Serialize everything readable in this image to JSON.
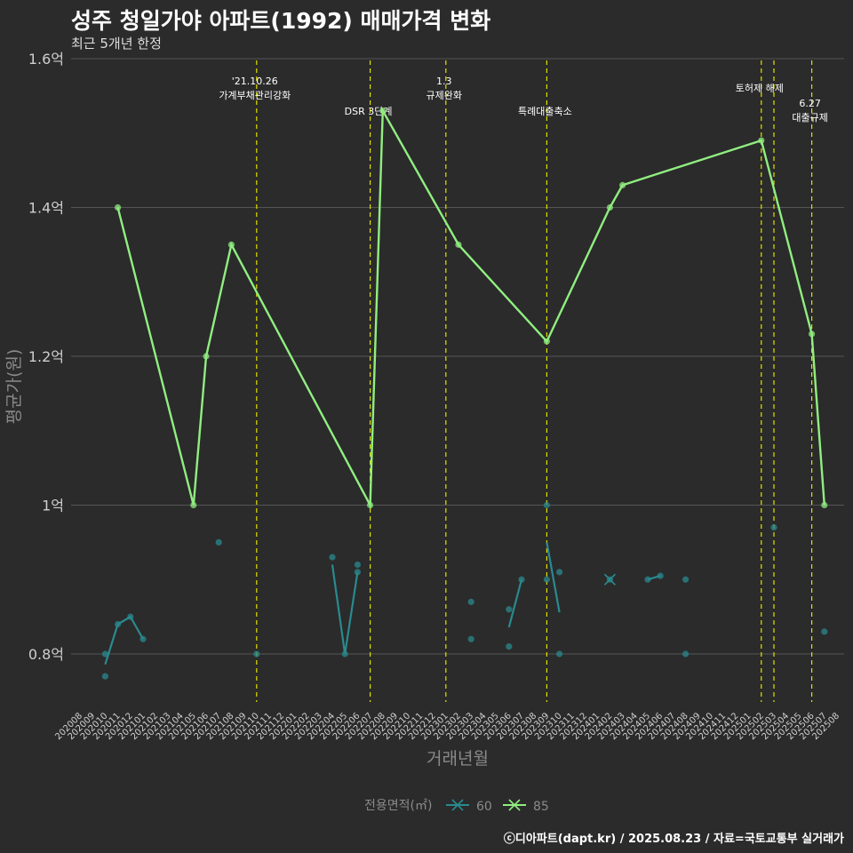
{
  "title": "성주 청일가야 아파트(1992) 매매가격 변화",
  "subtitle": "최근 5개년 한정",
  "footer": "ⓒ디아파트(dapt.kr) / 2025.08.23 / 자료=국토교통부 실거래가",
  "colors": {
    "series60": "#2a8a8f",
    "series85": "#90ee80",
    "event": "#e0e000",
    "grid": "#555555",
    "bg": "#2b2b2b"
  },
  "chart_data": {
    "type": "line",
    "title": "성주 청일가야 아파트(1992) 매매가격 변화",
    "xlabel": "거래년월",
    "ylabel": "평균가(원)",
    "ylim": [
      0.74,
      1.62
    ],
    "y_ticks": [
      {
        "value": 0.8,
        "label": "0.8억"
      },
      {
        "value": 1.0,
        "label": "1억"
      },
      {
        "value": 1.2,
        "label": "1.2억"
      },
      {
        "value": 1.4,
        "label": "1.4억"
      },
      {
        "value": 1.6,
        "label": "1.6억"
      }
    ],
    "x_start": "202008",
    "x_categories": [
      "202008",
      "202009",
      "202010",
      "202011",
      "202012",
      "202101",
      "202102",
      "202103",
      "202104",
      "202105",
      "202106",
      "202107",
      "202108",
      "202109",
      "202110",
      "202111",
      "202112",
      "202201",
      "202202",
      "202203",
      "202204",
      "202205",
      "202206",
      "202207",
      "202208",
      "202209",
      "202210",
      "202211",
      "202212",
      "202301",
      "202302",
      "202303",
      "202304",
      "202305",
      "202306",
      "202307",
      "202308",
      "202309",
      "202310",
      "202311",
      "202312",
      "202401",
      "202402",
      "202403",
      "202404",
      "202405",
      "202406",
      "202407",
      "202408",
      "202409",
      "202410",
      "202411",
      "202412",
      "202501",
      "202502",
      "202503",
      "202504",
      "202505",
      "202506",
      "202507",
      "202508"
    ],
    "legend": {
      "title": "전용면적(㎡)",
      "position": "bottom"
    },
    "series": [
      {
        "name": "60",
        "line_segments": [
          [
            [
              "202010",
              0.786
            ],
            [
              "202011",
              0.84
            ],
            [
              "202012",
              0.85
            ],
            [
              "202101",
              0.82
            ]
          ],
          [
            [
              "202204",
              0.92
            ],
            [
              "202205",
              0.8
            ],
            [
              "202206",
              0.91
            ]
          ],
          [
            [
              "202306",
              0.836
            ],
            [
              "202307",
              0.9
            ]
          ],
          [
            [
              "202309",
              0.95
            ],
            [
              "202310",
              0.856
            ]
          ],
          [
            [
              "202402",
              0.9
            ]
          ],
          [
            [
              "202405",
              0.9
            ],
            [
              "202406",
              0.905
            ]
          ]
        ],
        "points": [
          [
            "202010",
            0.77
          ],
          [
            "202010",
            0.8
          ],
          [
            "202011",
            0.84
          ],
          [
            "202012",
            0.85
          ],
          [
            "202101",
            0.82
          ],
          [
            "202107",
            0.95
          ],
          [
            "202110",
            0.8
          ],
          [
            "202204",
            0.93
          ],
          [
            "202205",
            0.8
          ],
          [
            "202206",
            0.91
          ],
          [
            "202206",
            0.92
          ],
          [
            "202303",
            0.82
          ],
          [
            "202303",
            0.87
          ],
          [
            "202306",
            0.81
          ],
          [
            "202306",
            0.86
          ],
          [
            "202307",
            0.9
          ],
          [
            "202309",
            0.9
          ],
          [
            "202309",
            1.0
          ],
          [
            "202310",
            0.8
          ],
          [
            "202310",
            0.91
          ],
          [
            "202402",
            0.9
          ],
          [
            "202405",
            0.9
          ],
          [
            "202406",
            0.905
          ],
          [
            "202408",
            0.8
          ],
          [
            "202408",
            0.9
          ],
          [
            "202503",
            0.97
          ],
          [
            "202507",
            0.83
          ]
        ]
      },
      {
        "name": "85",
        "values": [
          [
            "202011",
            1.4
          ],
          [
            "202105",
            1.0
          ],
          [
            "202106",
            1.2
          ],
          [
            "202108",
            1.35
          ],
          [
            "202207",
            1.0
          ],
          [
            "202208",
            1.53
          ],
          [
            "202302",
            1.35
          ],
          [
            "202309",
            1.22
          ],
          [
            "202402",
            1.4
          ],
          [
            "202403",
            1.43
          ],
          [
            "202502",
            1.49
          ],
          [
            "202506",
            1.23
          ],
          [
            "202507",
            1.0
          ]
        ]
      }
    ],
    "events": [
      {
        "month": "202110",
        "lines": [
          "'21.10.26",
          "가계부채관리강화"
        ],
        "level": 0
      },
      {
        "month": "202207",
        "lines": [
          "DSR 3단계"
        ],
        "level": 2
      },
      {
        "month": "202301",
        "lines": [
          "1.3",
          "규제완화"
        ],
        "level": 0
      },
      {
        "month": "202309",
        "lines": [
          "특례대출축소"
        ],
        "level": 2
      },
      {
        "month": "202502",
        "lines": [
          "토허제 해제"
        ],
        "level": 1
      },
      {
        "month": "202503",
        "lines": [],
        "level": 1
      },
      {
        "month": "202506",
        "lines": [
          "6.27",
          "대출규제"
        ],
        "level": 3
      }
    ]
  }
}
